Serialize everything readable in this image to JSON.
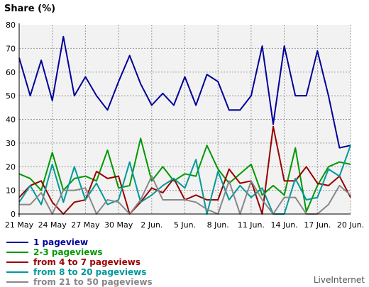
{
  "chart_data": {
    "type": "line",
    "ylabel": "Share (%)",
    "ylim": [
      0,
      80
    ],
    "yticks": [
      0,
      10,
      20,
      30,
      40,
      50,
      60,
      70,
      80
    ],
    "grid": true,
    "legend_position": "bottom-left",
    "x_tick_labels": [
      "21 May",
      "24 May",
      "27 May",
      "30 May",
      "2 Jun.",
      "5 Jun.",
      "8 Jun.",
      "11 Jun.",
      "14 Jun.",
      "17 Jun.",
      "20 Jun."
    ],
    "x_tick_index": [
      0,
      3,
      6,
      9,
      12,
      15,
      18,
      21,
      24,
      27,
      30
    ],
    "series": [
      {
        "name": "1 pageview",
        "color": "#000099",
        "values": [
          66,
          50,
          65,
          48,
          75,
          50,
          58,
          50,
          44,
          56,
          67,
          55,
          46,
          51,
          46,
          58,
          46,
          59,
          56,
          44,
          44,
          50,
          71,
          38,
          71,
          50,
          50,
          69,
          50,
          28,
          29
        ]
      },
      {
        "name": "2-3 pageviews",
        "color": "#009900",
        "values": [
          17,
          15,
          10,
          26,
          10,
          15,
          16,
          14,
          27,
          11,
          12,
          32,
          14,
          20,
          14,
          17,
          16,
          29,
          19,
          13,
          17,
          21,
          8,
          12,
          8,
          28,
          1,
          12,
          20,
          22,
          21
        ]
      },
      {
        "name": "from 4 to 7 pageviews",
        "color": "#990000",
        "values": [
          7,
          12,
          14,
          5,
          0,
          5,
          6,
          18,
          15,
          16,
          0,
          5,
          11,
          9,
          15,
          6,
          8,
          6,
          6,
          19,
          13,
          14,
          0,
          37,
          14,
          14,
          20,
          13,
          12,
          16,
          7
        ]
      },
      {
        "name": "from 8 to 20 pageviews",
        "color": "#009999",
        "values": [
          5,
          12,
          4,
          21,
          5,
          20,
          6,
          13,
          4,
          6,
          22,
          5,
          8,
          12,
          15,
          11,
          23,
          0,
          18,
          6,
          12,
          7,
          11,
          0,
          0,
          15,
          6,
          7,
          19,
          16,
          29
        ]
      },
      {
        "name": "from 21 to 50 pageviews",
        "color": "#888888",
        "values": [
          4,
          4,
          9,
          0,
          10,
          10,
          11,
          0,
          6,
          5,
          0,
          6,
          16,
          6,
          6,
          6,
          5,
          2,
          0,
          14,
          0,
          14,
          6,
          0,
          7,
          7,
          0,
          0,
          4,
          12,
          8
        ]
      }
    ]
  },
  "watermark": "LiveInternet"
}
